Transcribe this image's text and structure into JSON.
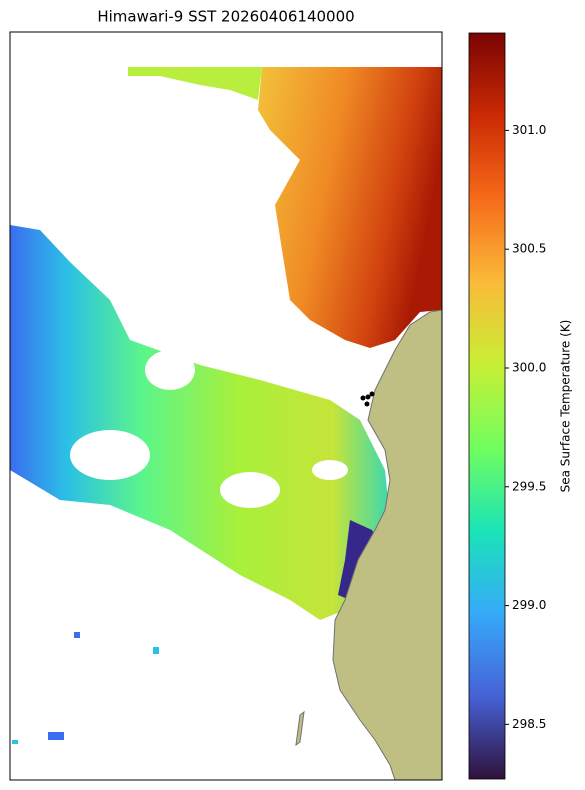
{
  "chart_data": {
    "type": "map",
    "title": "Himawari-9 SST 20260406140000",
    "colorbar_label": "Sea Surface Temperature (K)",
    "colormap": "turbo",
    "ylim": [
      298.27,
      301.41
    ],
    "yticks": [
      {
        "value": 298.5,
        "label": "298.5"
      },
      {
        "value": 299,
        "label": "299.0"
      },
      {
        "value": 299.5,
        "label": "299.5"
      },
      {
        "value": 300,
        "label": "300.0"
      },
      {
        "value": 300.5,
        "label": "300.5"
      },
      {
        "value": 301,
        "label": "301.0"
      }
    ]
  }
}
